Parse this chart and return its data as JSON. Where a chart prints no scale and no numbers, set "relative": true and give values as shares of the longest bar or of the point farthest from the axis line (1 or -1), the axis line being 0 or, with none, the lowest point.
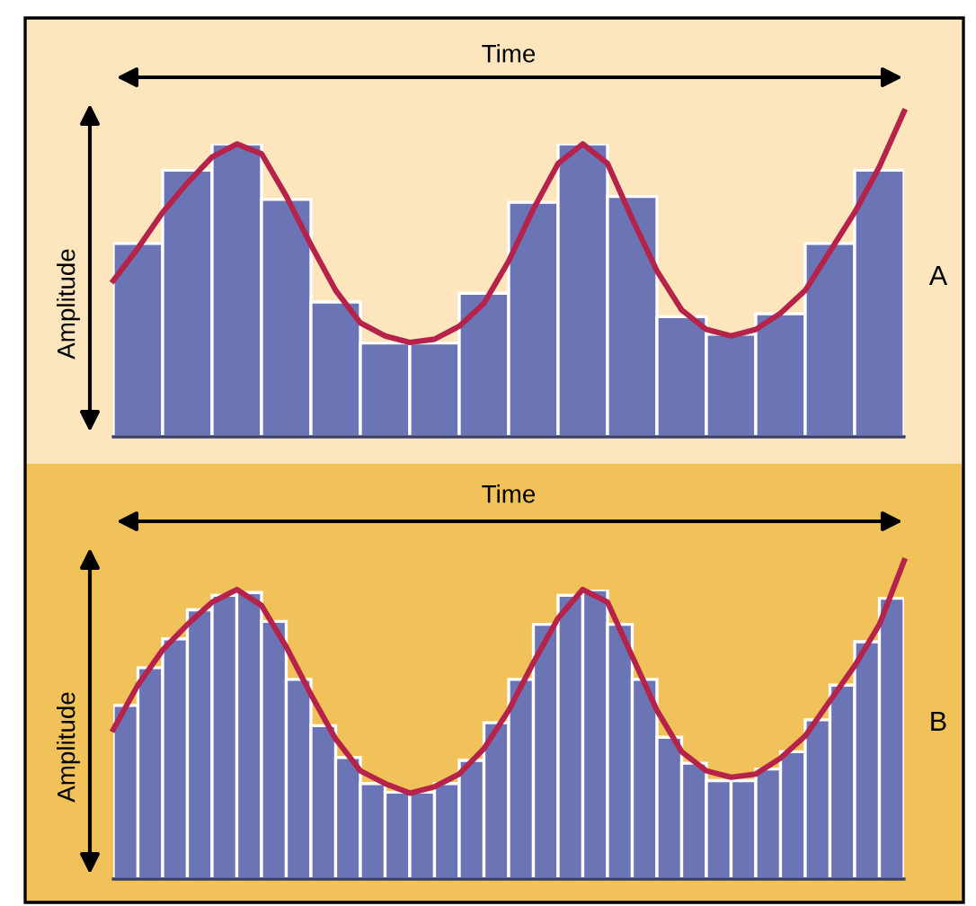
{
  "chart_data": [
    {
      "type": "bar",
      "xlabel": "Time",
      "ylabel": "Amplitude",
      "annotations": [
        "A"
      ],
      "relative": true,
      "categories": [
        null,
        null,
        null,
        null,
        null,
        null,
        null,
        null,
        null,
        null,
        null,
        null,
        null,
        null,
        null,
        null
      ],
      "series": [
        {
          "color": "#6b74b5",
          "values": [
            0.66,
            0.91,
            1.0,
            0.81,
            0.46,
            0.32,
            0.32,
            0.49,
            0.8,
            1.0,
            0.82,
            0.41,
            0.35,
            0.42,
            0.66,
            0.91
          ]
        }
      ]
    },
    {
      "type": "line",
      "relative": true,
      "categories": [
        null,
        null,
        null,
        null,
        null,
        null,
        null,
        null,
        null,
        null,
        null,
        null,
        null,
        null,
        null,
        null,
        null,
        null,
        null,
        null,
        null,
        null,
        null,
        null,
        null,
        null,
        null,
        null,
        null,
        null,
        null,
        null,
        null
      ],
      "series": [
        {
          "color": "#b5224a",
          "values": [
            0.48,
            0.58,
            0.69,
            0.78,
            0.86,
            0.9,
            0.87,
            0.74,
            0.59,
            0.45,
            0.35,
            0.31,
            0.29,
            0.3,
            0.34,
            0.41,
            0.54,
            0.7,
            0.84,
            0.9,
            0.84,
            0.67,
            0.51,
            0.39,
            0.33,
            0.31,
            0.33,
            0.38,
            0.45,
            0.57,
            0.69,
            0.83,
            1.0
          ]
        }
      ]
    },
    {
      "type": "bar",
      "xlabel": "Time",
      "ylabel": "Amplitude",
      "annotations": [
        "B"
      ],
      "relative": true,
      "categories": [
        null,
        null,
        null,
        null,
        null,
        null,
        null,
        null,
        null,
        null,
        null,
        null,
        null,
        null,
        null,
        null,
        null,
        null,
        null,
        null,
        null,
        null,
        null,
        null,
        null,
        null,
        null,
        null,
        null,
        null,
        null,
        null
      ],
      "series": [
        {
          "color": "#6b74b5",
          "values": [
            0.6,
            0.73,
            0.83,
            0.93,
            0.98,
            0.99,
            0.89,
            0.69,
            0.53,
            0.42,
            0.33,
            0.3,
            0.3,
            0.33,
            0.41,
            0.54,
            0.69,
            0.88,
            0.98,
            1.0,
            0.88,
            0.69,
            0.49,
            0.4,
            0.34,
            0.34,
            0.38,
            0.44,
            0.55,
            0.67,
            0.82,
            0.97
          ]
        }
      ]
    },
    {
      "type": "line",
      "relative": true,
      "categories": [
        null,
        null,
        null,
        null,
        null,
        null,
        null,
        null,
        null,
        null,
        null,
        null,
        null,
        null,
        null,
        null,
        null,
        null,
        null,
        null,
        null,
        null,
        null,
        null,
        null,
        null,
        null,
        null,
        null,
        null,
        null,
        null,
        null
      ],
      "series": [
        {
          "color": "#b5224a",
          "values": [
            0.47,
            0.61,
            0.72,
            0.8,
            0.87,
            0.91,
            0.86,
            0.73,
            0.58,
            0.44,
            0.34,
            0.3,
            0.27,
            0.29,
            0.33,
            0.41,
            0.53,
            0.68,
            0.82,
            0.91,
            0.87,
            0.7,
            0.53,
            0.4,
            0.34,
            0.32,
            0.33,
            0.38,
            0.45,
            0.56,
            0.67,
            0.8,
            1.0
          ]
        }
      ]
    }
  ]
}
